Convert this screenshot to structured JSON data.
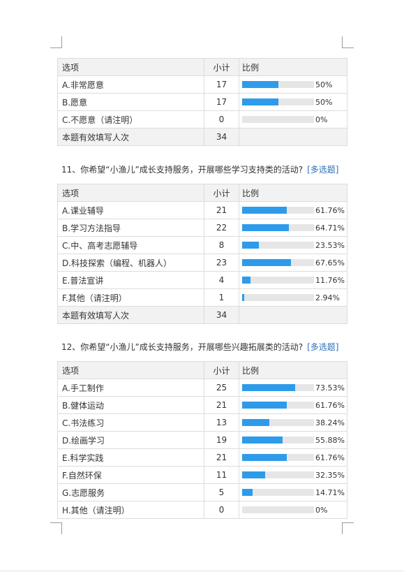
{
  "tables": [
    {
      "title": "",
      "type": "",
      "header": {
        "option": "选项",
        "count": "小计",
        "ratio": "比例"
      },
      "rows": [
        {
          "option": "A.非常愿意",
          "count": "17",
          "pct": "50%",
          "fill": 0.5
        },
        {
          "option": "B.愿意",
          "count": "17",
          "pct": "50%",
          "fill": 0.5
        },
        {
          "option": "C.不愿意（请注明）",
          "count": "0",
          "pct": "0%",
          "fill": 0
        }
      ],
      "total": {
        "label": "本题有效填写人次",
        "count": "34"
      }
    },
    {
      "title": "11、你希望“小渔儿”成长支持服务，开展哪些学习支持类的活动?",
      "type": "[多选题]",
      "header": {
        "option": "选项",
        "count": "小计",
        "ratio": "比例"
      },
      "rows": [
        {
          "option": "A.课业辅导",
          "count": "21",
          "pct": "61.76%",
          "fill": 0.6176
        },
        {
          "option": "B.学习方法指导",
          "count": "22",
          "pct": "64.71%",
          "fill": 0.6471
        },
        {
          "option": "C.中、高考志愿辅导",
          "count": "8",
          "pct": "23.53%",
          "fill": 0.2353
        },
        {
          "option": "D.科技探索（编程、机器人）",
          "count": "23",
          "pct": "67.65%",
          "fill": 0.6765
        },
        {
          "option": "E.普法宣讲",
          "count": "4",
          "pct": "11.76%",
          "fill": 0.1176
        },
        {
          "option": "F.其他（请注明）",
          "count": "1",
          "pct": "2.94%",
          "fill": 0.0294
        }
      ],
      "total": {
        "label": "本题有效填写人次",
        "count": "34"
      }
    },
    {
      "title": "12、你希望“小渔儿”成长支持服务，开展哪些兴趣拓展类的活动?",
      "type": "[多选题]",
      "header": {
        "option": "选项",
        "count": "小计",
        "ratio": "比例"
      },
      "rows": [
        {
          "option": "A.手工制作",
          "count": "25",
          "pct": "73.53%",
          "fill": 0.7353
        },
        {
          "option": "B.健体运动",
          "count": "21",
          "pct": "61.76%",
          "fill": 0.6176
        },
        {
          "option": "C.书法练习",
          "count": "13",
          "pct": "38.24%",
          "fill": 0.3824
        },
        {
          "option": "D.绘画学习",
          "count": "19",
          "pct": "55.88%",
          "fill": 0.5588
        },
        {
          "option": "E.科学实践",
          "count": "21",
          "pct": "61.76%",
          "fill": 0.6176
        },
        {
          "option": "F.自然环保",
          "count": "11",
          "pct": "32.35%",
          "fill": 0.3235
        },
        {
          "option": "G.志愿服务",
          "count": "5",
          "pct": "14.71%",
          "fill": 0.1471
        },
        {
          "option": "H.其他（请注明）",
          "count": "0",
          "pct": "0%",
          "fill": 0
        }
      ]
    }
  ],
  "colors": {
    "bar_fill": "#2e9bea",
    "bar_track": "#e6e6e6",
    "header_bg": "#f2f2f2",
    "link": "#2f6fb5"
  }
}
